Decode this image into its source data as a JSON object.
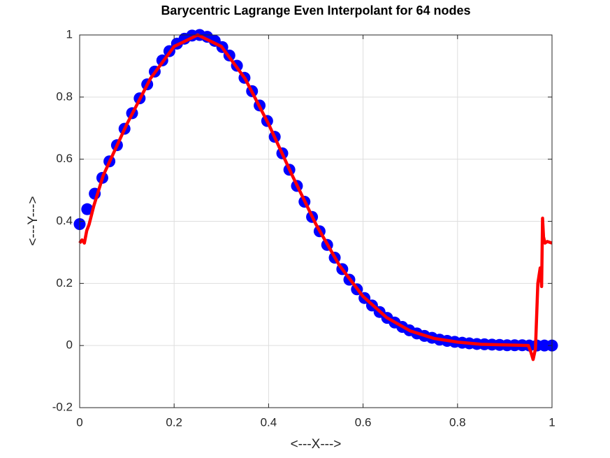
{
  "chart_data": {
    "type": "scatter",
    "title": "Barycentric Lagrange Even Interpolant for 64 nodes",
    "xlabel": "<---X--->",
    "ylabel": "<---Y--->",
    "xlim": [
      0,
      1
    ],
    "ylim": [
      -0.2,
      1
    ],
    "xticks": [
      0,
      0.2,
      0.4,
      0.6,
      0.8,
      1
    ],
    "yticks": [
      -0.2,
      0,
      0.2,
      0.4,
      0.6,
      0.8,
      1
    ],
    "grid": true,
    "series": [
      {
        "type": "scatter",
        "color": "#0000ff",
        "x": [
          0,
          0.016,
          0.032,
          0.048,
          0.063,
          0.079,
          0.095,
          0.111,
          0.127,
          0.143,
          0.159,
          0.175,
          0.19,
          0.206,
          0.222,
          0.238,
          0.254,
          0.27,
          0.286,
          0.302,
          0.317,
          0.333,
          0.349,
          0.365,
          0.381,
          0.397,
          0.413,
          0.429,
          0.444,
          0.46,
          0.476,
          0.492,
          0.508,
          0.524,
          0.54,
          0.556,
          0.571,
          0.587,
          0.603,
          0.619,
          0.635,
          0.651,
          0.667,
          0.683,
          0.698,
          0.714,
          0.73,
          0.746,
          0.762,
          0.778,
          0.794,
          0.81,
          0.825,
          0.841,
          0.857,
          0.873,
          0.889,
          0.905,
          0.921,
          0.937,
          0.952,
          0.968,
          0.984,
          1
        ],
        "values": [
          0.391,
          0.439,
          0.489,
          0.54,
          0.593,
          0.645,
          0.698,
          0.748,
          0.796,
          0.841,
          0.882,
          0.918,
          0.948,
          0.972,
          0.988,
          0.998,
          1,
          0.994,
          0.981,
          0.961,
          0.934,
          0.901,
          0.862,
          0.819,
          0.773,
          0.723,
          0.672,
          0.619,
          0.566,
          0.514,
          0.463,
          0.414,
          0.368,
          0.324,
          0.283,
          0.246,
          0.212,
          0.181,
          0.153,
          0.129,
          0.108,
          0.089,
          0.074,
          0.06,
          0.049,
          0.039,
          0.031,
          0.025,
          0.019,
          0.015,
          0.012,
          0.009,
          0.007,
          0.005,
          0.004,
          0.003,
          0.002,
          0.001,
          0.001,
          0.001,
          0,
          0,
          0,
          0
        ]
      },
      {
        "type": "line",
        "color": "#ff0000",
        "x": [
          0,
          0.005,
          0.01,
          0.015,
          0.02,
          0.03,
          0.05,
          0.1,
          0.15,
          0.2,
          0.25,
          0.3,
          0.35,
          0.4,
          0.45,
          0.5,
          0.55,
          0.6,
          0.65,
          0.7,
          0.75,
          0.8,
          0.85,
          0.9,
          0.93,
          0.95,
          0.955,
          0.96,
          0.965,
          0.97,
          0.975,
          0.978,
          0.98,
          0.982,
          0.985,
          0.99,
          1
        ],
        "values": [
          0.33,
          0.34,
          0.33,
          0.37,
          0.39,
          0.45,
          0.548,
          0.713,
          0.86,
          0.963,
          1,
          0.963,
          0.86,
          0.713,
          0.548,
          0.391,
          0.258,
          0.158,
          0.09,
          0.047,
          0.023,
          0.011,
          0.004,
          0.002,
          0.001,
          0,
          -0.02,
          -0.045,
          -0.01,
          0.2,
          0.25,
          0.19,
          0.41,
          0.35,
          0.33,
          0.335,
          0.33
        ]
      }
    ]
  }
}
